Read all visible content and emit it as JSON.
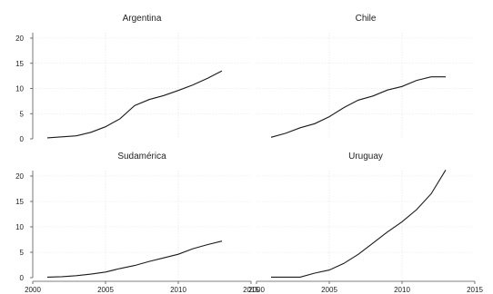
{
  "chart_data": [
    {
      "type": "line",
      "title": "Argentina",
      "x": [
        2001,
        2002,
        2003,
        2004,
        2005,
        2006,
        2007,
        2008,
        2009,
        2010,
        2011,
        2012,
        2013
      ],
      "values": [
        0.2,
        0.4,
        0.6,
        1.3,
        2.4,
        4.0,
        6.6,
        7.8,
        8.6,
        9.6,
        10.7,
        12.0,
        13.5
      ],
      "ylim": [
        0,
        20
      ],
      "xlim": [
        2000,
        2015
      ],
      "yticks": [
        "0",
        "5",
        "10",
        "15",
        "20"
      ],
      "xticks": [],
      "grid": true
    },
    {
      "type": "line",
      "title": "Chile",
      "x": [
        2001,
        2002,
        2003,
        2004,
        2005,
        2006,
        2007,
        2008,
        2009,
        2010,
        2011,
        2012,
        2013
      ],
      "values": [
        0.3,
        1.1,
        2.2,
        3.0,
        4.4,
        6.2,
        7.7,
        8.5,
        9.7,
        10.4,
        11.6,
        12.3,
        12.3
      ],
      "ylim": [
        0,
        20
      ],
      "xlim": [
        2000,
        2015
      ],
      "yticks": [],
      "xticks": [],
      "grid": true
    },
    {
      "type": "line",
      "title": "Sudamérica",
      "x": [
        2001,
        2002,
        2003,
        2004,
        2005,
        2006,
        2007,
        2008,
        2009,
        2010,
        2011,
        2012,
        2013
      ],
      "values": [
        0.1,
        0.2,
        0.4,
        0.7,
        1.1,
        1.8,
        2.4,
        3.2,
        3.9,
        4.6,
        5.7,
        6.5,
        7.2
      ],
      "ylim": [
        0,
        20
      ],
      "xlim": [
        2000,
        2015
      ],
      "yticks": [
        "0",
        "5",
        "10",
        "15",
        "20"
      ],
      "xticks": [
        "2000",
        "2005",
        "2010",
        "2015"
      ],
      "grid": true
    },
    {
      "type": "line",
      "title": "Uruguay",
      "x": [
        2001,
        2002,
        2003,
        2004,
        2005,
        2006,
        2007,
        2008,
        2009,
        2010,
        2011,
        2012,
        2013
      ],
      "values": [
        0.1,
        0.1,
        0.1,
        0.9,
        1.5,
        2.8,
        4.6,
        6.8,
        9.0,
        11.0,
        13.4,
        16.5,
        21.2
      ],
      "ylim": [
        0,
        20
      ],
      "xlim": [
        2000,
        2015
      ],
      "yticks": [],
      "xticks": [
        "2000",
        "2005",
        "2010",
        "2015"
      ],
      "grid": true
    }
  ]
}
